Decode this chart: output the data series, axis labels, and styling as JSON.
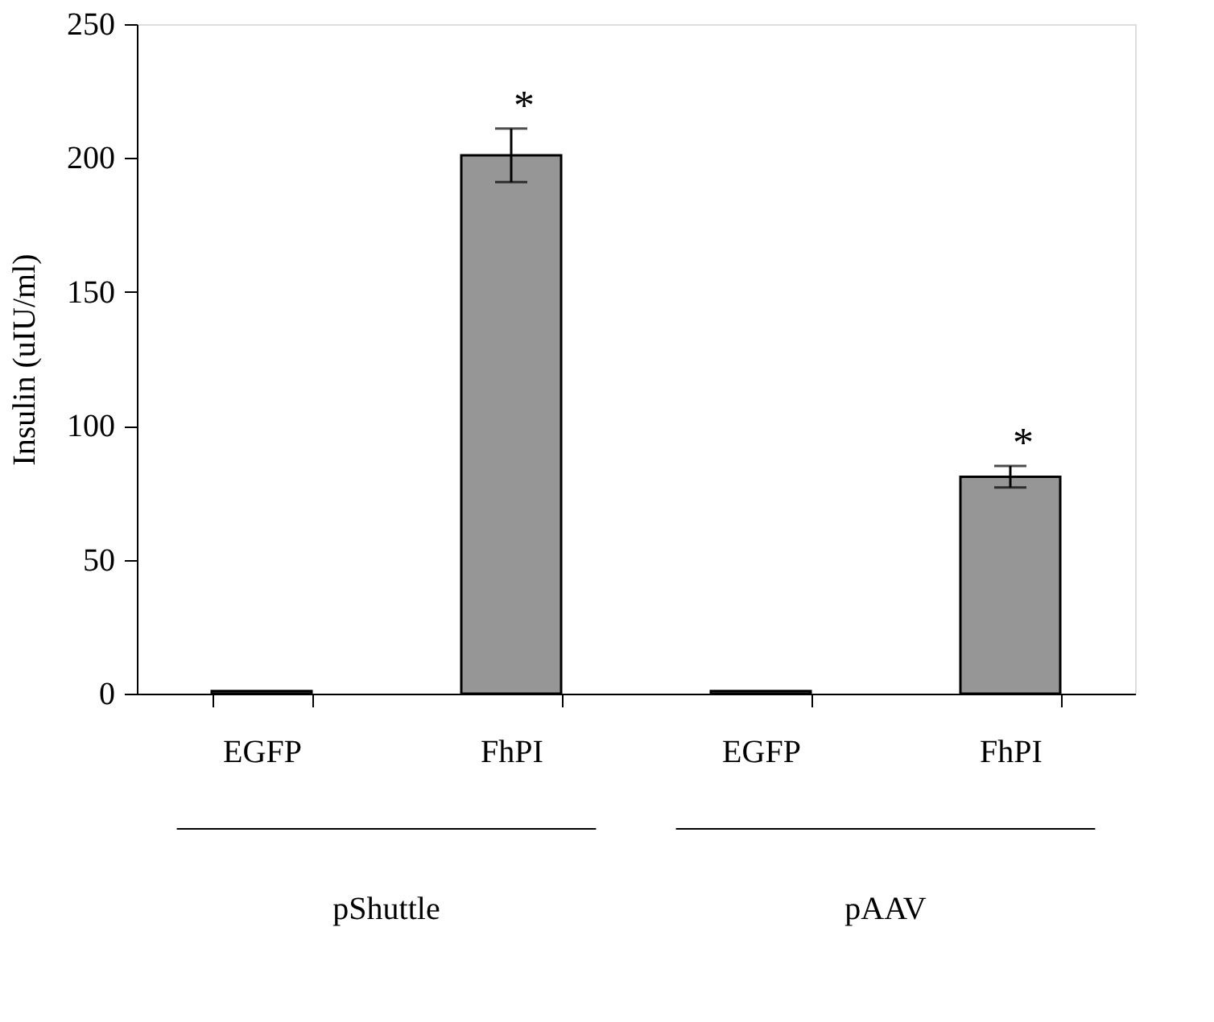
{
  "chart_data": {
    "type": "bar",
    "ylabel": "Insulin (uIU/ml)",
    "categories": [
      "EGFP",
      "FhPI",
      "EGFP",
      "FhPI"
    ],
    "values": [
      1,
      201,
      1,
      81
    ],
    "color": "#969696",
    "errors": [
      null,
      10,
      null,
      4
    ],
    "value_labels": [
      null,
      "*",
      null,
      "*"
    ],
    "ylim": [
      0,
      250
    ],
    "yticks": [
      0,
      50,
      100,
      150,
      200,
      250
    ],
    "grid": false,
    "annotations": [
      "pShuttle",
      "pAAV"
    ]
  }
}
